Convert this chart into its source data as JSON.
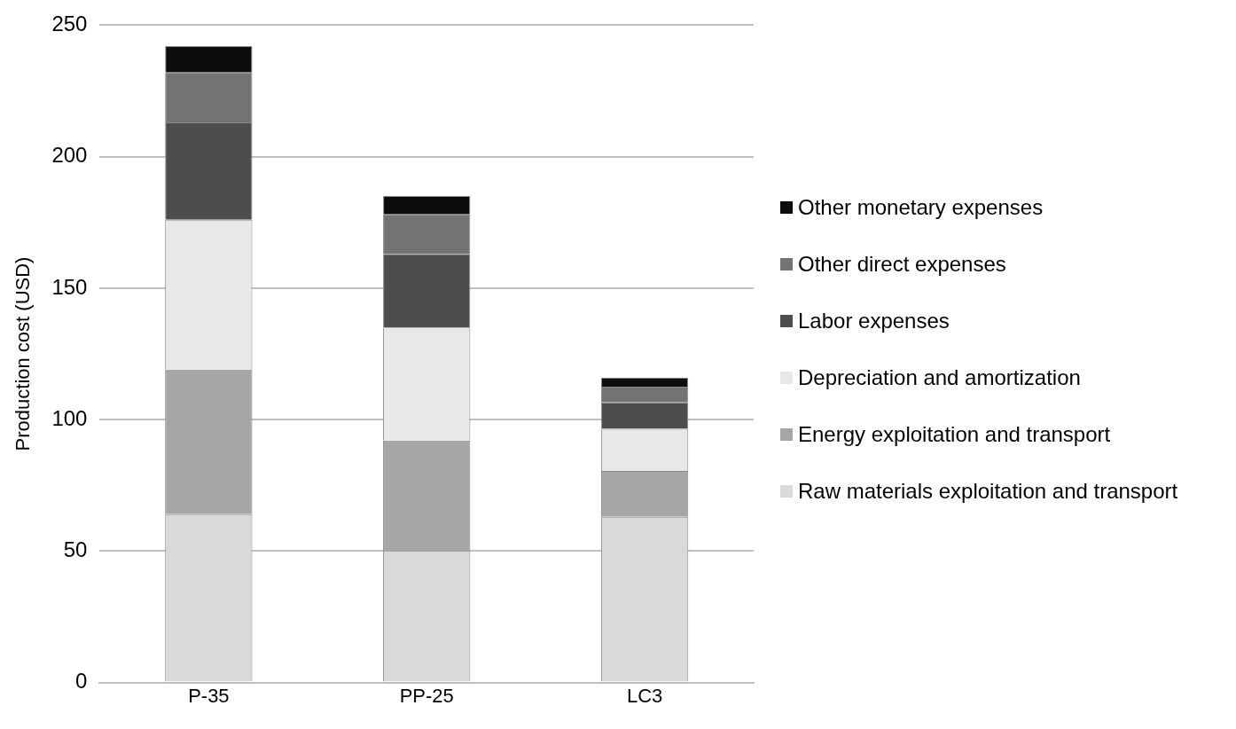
{
  "chart_data": {
    "type": "bar",
    "ylabel": "Production cost (USD)",
    "categories": [
      "P-35",
      "PP-25",
      "LC3"
    ],
    "stacked": true,
    "ylim": [
      0,
      250
    ],
    "yticks": [
      0,
      50,
      100,
      150,
      200,
      250
    ],
    "grid": "y",
    "legend": "right",
    "series": [
      {
        "name": "Raw materials exploitation and transport",
        "color": "#d9d9d9",
        "values": [
          64,
          50,
          63
        ]
      },
      {
        "name": "Energy exploitation and transport",
        "color": "#a6a6a6",
        "values": [
          55,
          42,
          17.5
        ]
      },
      {
        "name": "Depreciation and amortization",
        "color": "#e8e8e8",
        "values": [
          57,
          43,
          16
        ]
      },
      {
        "name": "Labor expenses",
        "color": "#4d4d4d",
        "values": [
          37,
          28,
          10
        ]
      },
      {
        "name": "Other direct expenses",
        "color": "#737373",
        "values": [
          19,
          15,
          6
        ]
      },
      {
        "name": "Other monetary expenses",
        "color": "#0d0d0d",
        "values": [
          10,
          7,
          3.5
        ]
      }
    ]
  }
}
